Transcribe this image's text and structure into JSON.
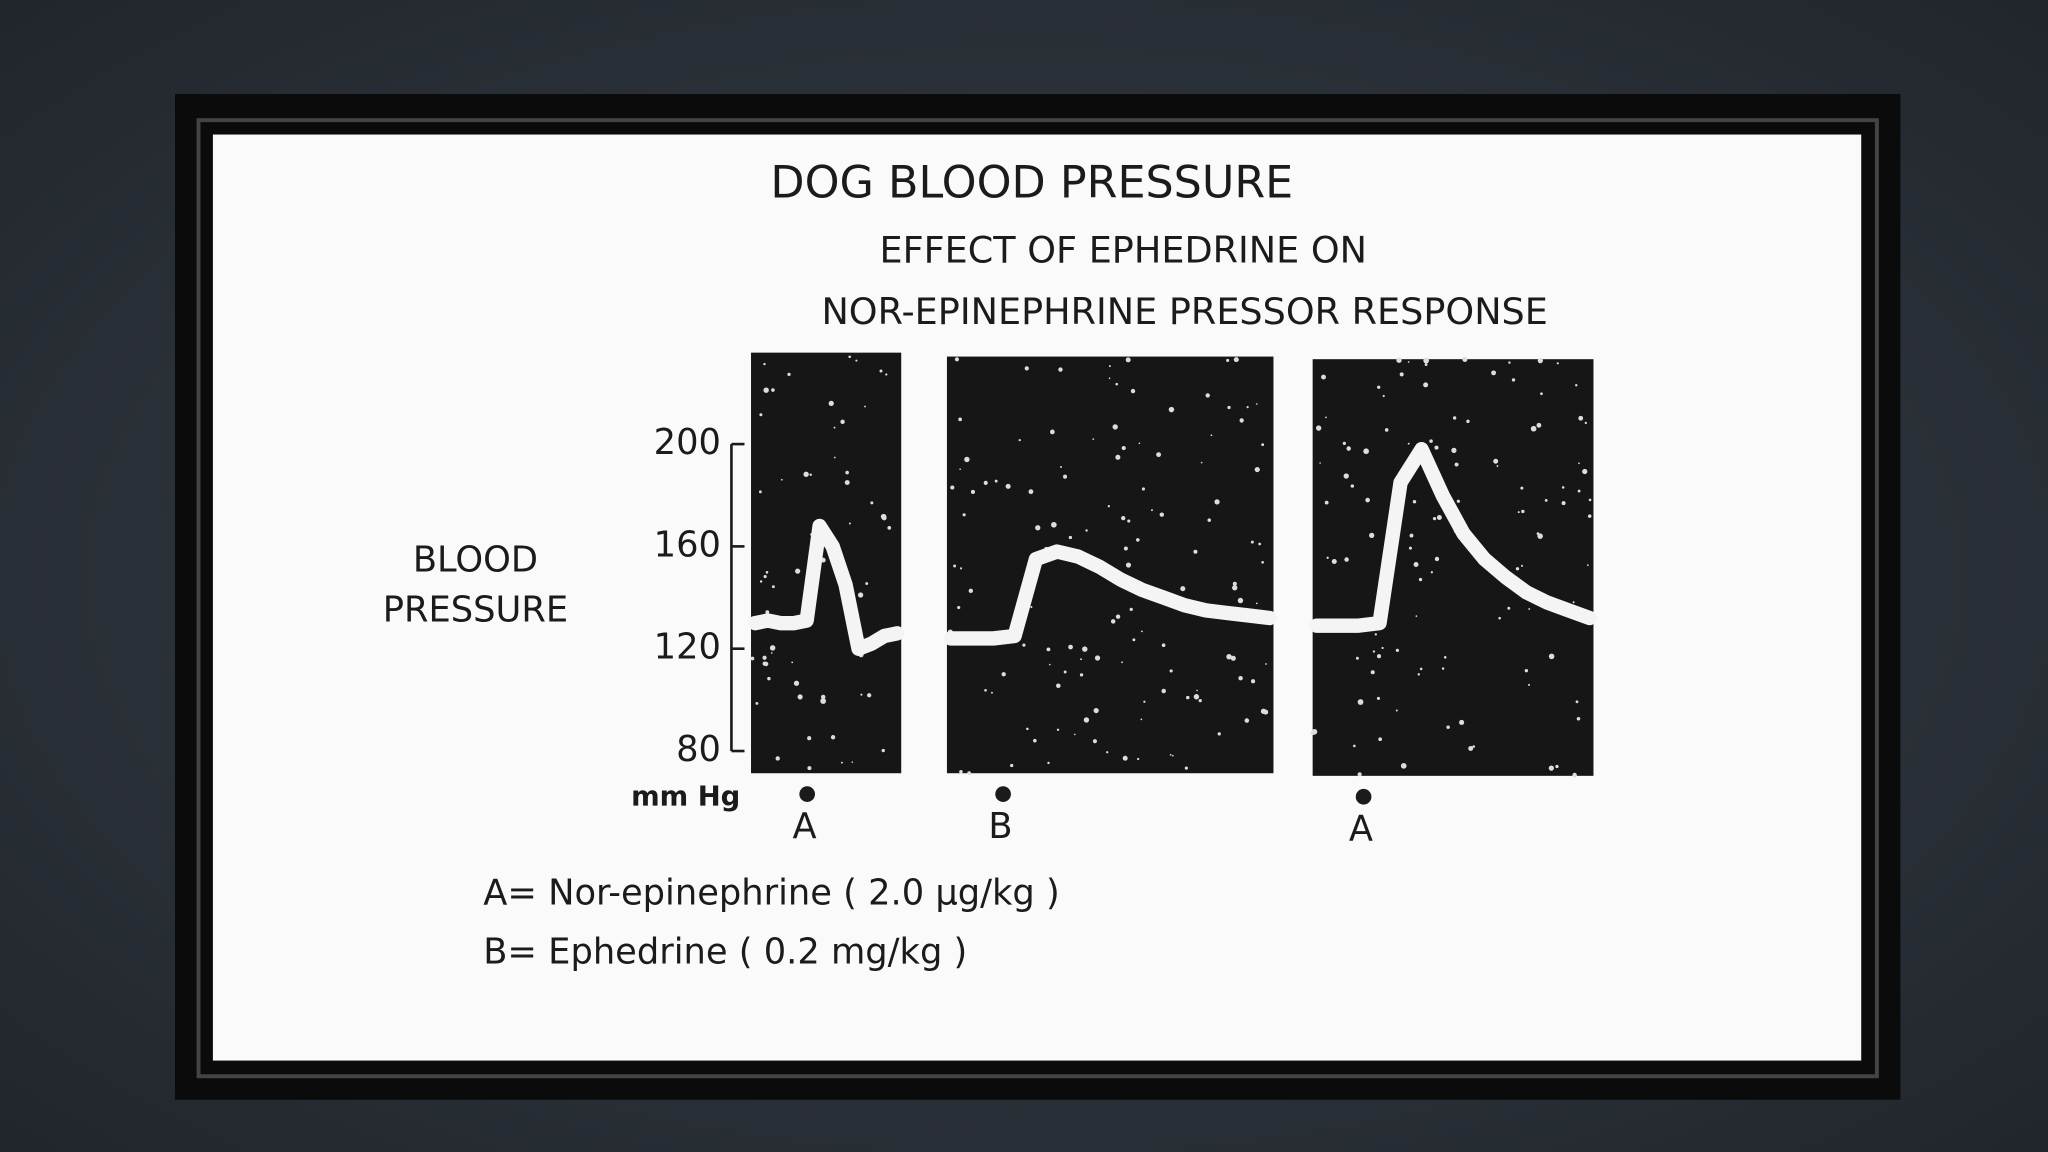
{
  "chart_data": {
    "type": "line",
    "title": "DOG BLOOD PRESSURE",
    "subtitle": [
      "EFFECT OF EPHEDRINE ON",
      "NOR-EPINEPHRINE PRESSOR RESPONSE"
    ],
    "ylabel": [
      "BLOOD",
      "PRESSURE"
    ],
    "yunit": "mm Hg",
    "ylim": [
      80,
      200
    ],
    "yticks": [
      80,
      120,
      160,
      200
    ],
    "color": "#f4f4f4",
    "series": [
      {
        "marker": "A",
        "values": [
          130,
          131,
          130,
          130,
          131,
          168,
          160,
          145,
          120,
          122,
          125,
          126
        ]
      },
      {
        "marker": "B",
        "values": [
          124,
          124,
          124,
          125,
          155,
          158,
          156,
          152,
          147,
          143,
          140,
          137,
          135,
          134,
          133,
          132
        ]
      },
      {
        "marker": "A",
        "values": [
          129,
          129,
          129,
          130,
          185,
          198,
          180,
          165,
          155,
          148,
          142,
          138,
          135,
          132
        ]
      }
    ],
    "notes": [
      "A= Nor-epinephrine ( 2.0 µg/kg )",
      "B= Ephedrine ( 0.2 mg/kg )"
    ]
  }
}
